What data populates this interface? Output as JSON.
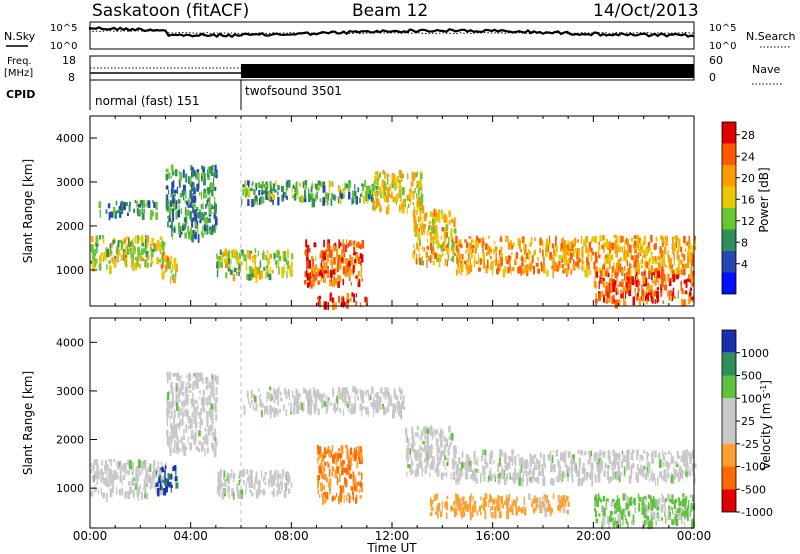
{
  "header": {
    "station": "Saskatoon (fitACF)",
    "beam": "Beam 12",
    "date": "14/Oct/2013"
  },
  "status_panels": {
    "nsky_label": "N.Sky",
    "nsky_ticks": [
      "10^5",
      "10^0"
    ],
    "nsearch_label": "N.Search",
    "nsearch_ticks": [
      "10^5",
      "10^0"
    ],
    "freq_label": "Freq.",
    "freq_unit": "[MHz]",
    "freq_ticks": [
      "18",
      "8"
    ],
    "nave_label": "Nave",
    "nave_ticks": [
      "60",
      "0"
    ],
    "cpid_label": "CPID",
    "cpid_segments": [
      {
        "name": "normal (fast) 151",
        "start_hour": 0,
        "end_hour": 6
      },
      {
        "name": "twofsound 3501",
        "start_hour": 6,
        "end_hour": 24
      }
    ]
  },
  "chart_data": [
    {
      "type": "heatmap",
      "quantity": "power",
      "ylabel": "Slant Range [km]",
      "xlabel": "",
      "ylim": [
        180,
        4500
      ],
      "xlim": [
        0,
        24
      ],
      "y_ticks": [
        "1000",
        "2000",
        "3000",
        "4000"
      ],
      "x_ticks": [
        "00:00",
        "04:00",
        "08:00",
        "12:00",
        "16:00",
        "20:00",
        "00:00"
      ],
      "colorbar": {
        "label": "Power [dB]",
        "ticks": [
          "28",
          "24",
          "20",
          "16",
          "12",
          "8",
          "4"
        ],
        "colors": [
          "#e00000",
          "#ff5a00",
          "#ff9a00",
          "#e8c800",
          "#68c630",
          "#2f8f5a",
          "#2747b0",
          "#0010ff"
        ]
      },
      "echo_regions": [
        {
          "t0": 0.0,
          "t1": 3.0,
          "r0": 1100,
          "r1": 1800,
          "level": 14
        },
        {
          "t0": 0.3,
          "t1": 2.6,
          "r0": 2300,
          "r1": 2600,
          "level": 8
        },
        {
          "t0": 2.8,
          "t1": 3.4,
          "r0": 800,
          "r1": 1400,
          "level": 18
        },
        {
          "t0": 3.0,
          "t1": 5.0,
          "r0": 1800,
          "r1": 3400,
          "level": 8
        },
        {
          "t0": 5.0,
          "t1": 8.0,
          "r0": 900,
          "r1": 1500,
          "level": 14
        },
        {
          "t0": 6.0,
          "t1": 11.5,
          "r0": 2600,
          "r1": 3050,
          "level": 10
        },
        {
          "t0": 8.5,
          "t1": 10.8,
          "r0": 700,
          "r1": 1700,
          "level": 24
        },
        {
          "t0": 9.0,
          "t1": 11.0,
          "r0": 250,
          "r1": 500,
          "level": 26
        },
        {
          "t0": 11.2,
          "t1": 13.2,
          "r0": 2400,
          "r1": 3300,
          "level": 16
        },
        {
          "t0": 12.8,
          "t1": 14.5,
          "r0": 1200,
          "r1": 2400,
          "level": 18
        },
        {
          "t0": 14.5,
          "t1": 24.0,
          "r0": 1000,
          "r1": 1800,
          "level": 20
        },
        {
          "t0": 20.0,
          "t1": 24.0,
          "r0": 300,
          "r1": 1000,
          "level": 24
        }
      ]
    },
    {
      "type": "heatmap",
      "quantity": "velocity",
      "ylabel": "Slant Range [km]",
      "xlabel": "Time UT",
      "ylim": [
        180,
        4500
      ],
      "xlim": [
        0,
        24
      ],
      "y_ticks": [
        "1000",
        "2000",
        "3000",
        "4000"
      ],
      "x_ticks": [
        "00:00",
        "04:00",
        "08:00",
        "12:00",
        "16:00",
        "20:00",
        "00:00"
      ],
      "colorbar": {
        "label": "Velocity [m s^-1]",
        "ticks": [
          "1000",
          "500",
          "100",
          "25",
          "-25",
          "-100",
          "-500",
          "-1000"
        ],
        "colors": [
          "#1a2fb0",
          "#2f8f5a",
          "#60c040",
          "#c8c8c8",
          "#c8c8c8",
          "#ffa030",
          "#ff6a00",
          "#e00000"
        ]
      },
      "echo_regions": [
        {
          "t0": 0.0,
          "t1": 3.0,
          "r0": 900,
          "r1": 1600,
          "level": 25
        },
        {
          "t0": 2.6,
          "t1": 3.4,
          "r0": 1000,
          "r1": 1500,
          "level": 800
        },
        {
          "t0": 3.0,
          "t1": 5.0,
          "r0": 1800,
          "r1": 3400,
          "level": 25
        },
        {
          "t0": 5.0,
          "t1": 8.0,
          "r0": 900,
          "r1": 1400,
          "level": 25
        },
        {
          "t0": 6.0,
          "t1": 12.5,
          "r0": 2600,
          "r1": 3100,
          "level": 25
        },
        {
          "t0": 9.0,
          "t1": 10.8,
          "r0": 800,
          "r1": 1900,
          "level": -300
        },
        {
          "t0": 12.5,
          "t1": 14.5,
          "r0": 1300,
          "r1": 2300,
          "level": 25
        },
        {
          "t0": 14.5,
          "t1": 24.0,
          "r0": 1200,
          "r1": 1800,
          "level": 25
        },
        {
          "t0": 13.5,
          "t1": 19.0,
          "r0": 500,
          "r1": 900,
          "level": -120
        },
        {
          "t0": 20.0,
          "t1": 24.0,
          "r0": 300,
          "r1": 900,
          "level": 100
        }
      ]
    }
  ]
}
